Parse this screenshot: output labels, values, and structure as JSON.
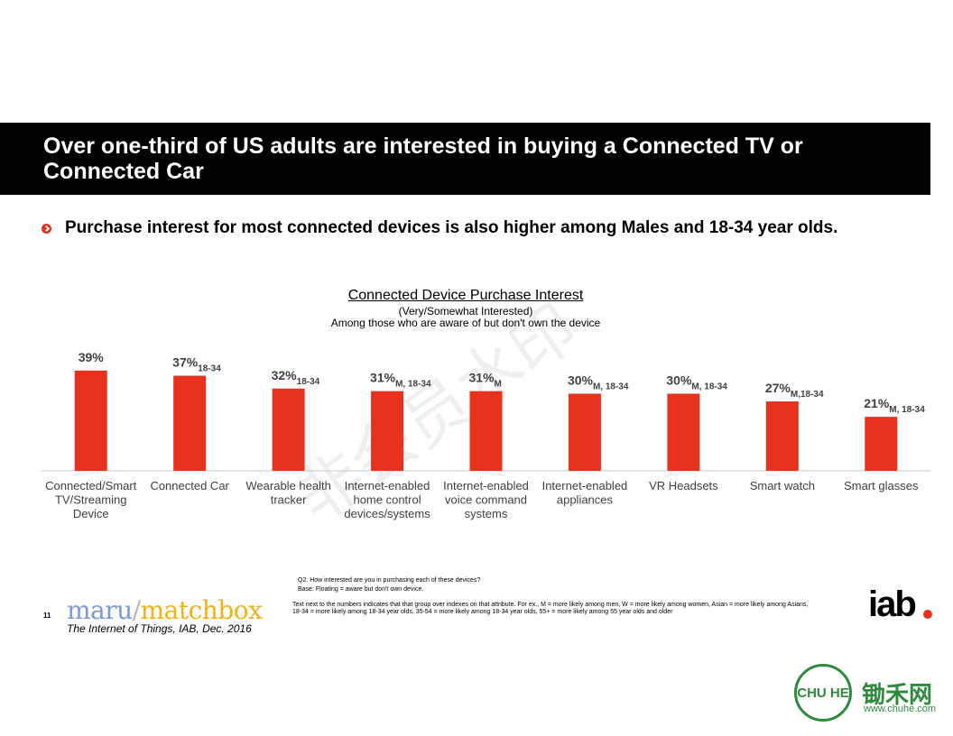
{
  "header": {
    "title": "Over one-third of US adults are interested in buying a Connected TV or Connected Car",
    "subtitle": "Purchase interest for most connected devices is also higher among Males and 18-34 year olds."
  },
  "colors": {
    "bar": "#e8321e",
    "axis": "#c8c8c8",
    "header_bg": "#000000"
  },
  "chart_data": {
    "type": "bar",
    "title": "Connected Device Purchase Interest",
    "subtitle_1": "(Very/Somewhat Interested)",
    "subtitle_2": "Among those who are aware of but don't own the device",
    "categories": [
      [
        "Connected/Smart",
        "TV/Streaming",
        "Device"
      ],
      [
        "Connected Car"
      ],
      [
        "Wearable health",
        "tracker"
      ],
      [
        "Internet-enabled",
        "home control",
        "devices/systems"
      ],
      [
        "Internet-enabled",
        "voice command",
        "systems"
      ],
      [
        "Internet-enabled",
        "appliances"
      ],
      [
        "VR Headsets"
      ],
      [
        "Smart watch"
      ],
      [
        "Smart glasses"
      ]
    ],
    "values": [
      39,
      37,
      32,
      31,
      31,
      30,
      30,
      27,
      21
    ],
    "value_labels": [
      "39%",
      "37%",
      "32%",
      "31%",
      "31%",
      "30%",
      "30%",
      "27%",
      "21%"
    ],
    "annotations": [
      "",
      "18-34",
      "18-34",
      "M, 18-34",
      "M",
      "M, 18-34",
      "M, 18-34",
      "M,18-34",
      "M, 18-34"
    ],
    "ylim": [
      0,
      50
    ],
    "grid": false
  },
  "footer": {
    "question": "Q2.  How interested are you in purchasing each of these devices?",
    "base": "Base: Floating = aware but don't own device.",
    "note_line1": "Text next to the numbers indicates that that group over indexes on that attribute.  For ex., M = more likely among men, W = more likely among women, Asian = more likely among Asians,",
    "note_line2": "18-34 = more likely among 18-34 year olds, 35-54 = more likely among 18-34 year olds, 55+ = more likely among 55 year olds and older",
    "page_number": "11",
    "logo_maru": "maru",
    "logo_slash": "/",
    "logo_matchbox": "matchbox",
    "source": "The Internet of Things, IAB, Dec. 2016",
    "iab_logo": "iab",
    "chuhe_logo_text": "CHU HE",
    "chuhe_name": "锄禾网",
    "chuhe_url": "www.chuhe.com",
    "watermark": "非会员水印"
  }
}
